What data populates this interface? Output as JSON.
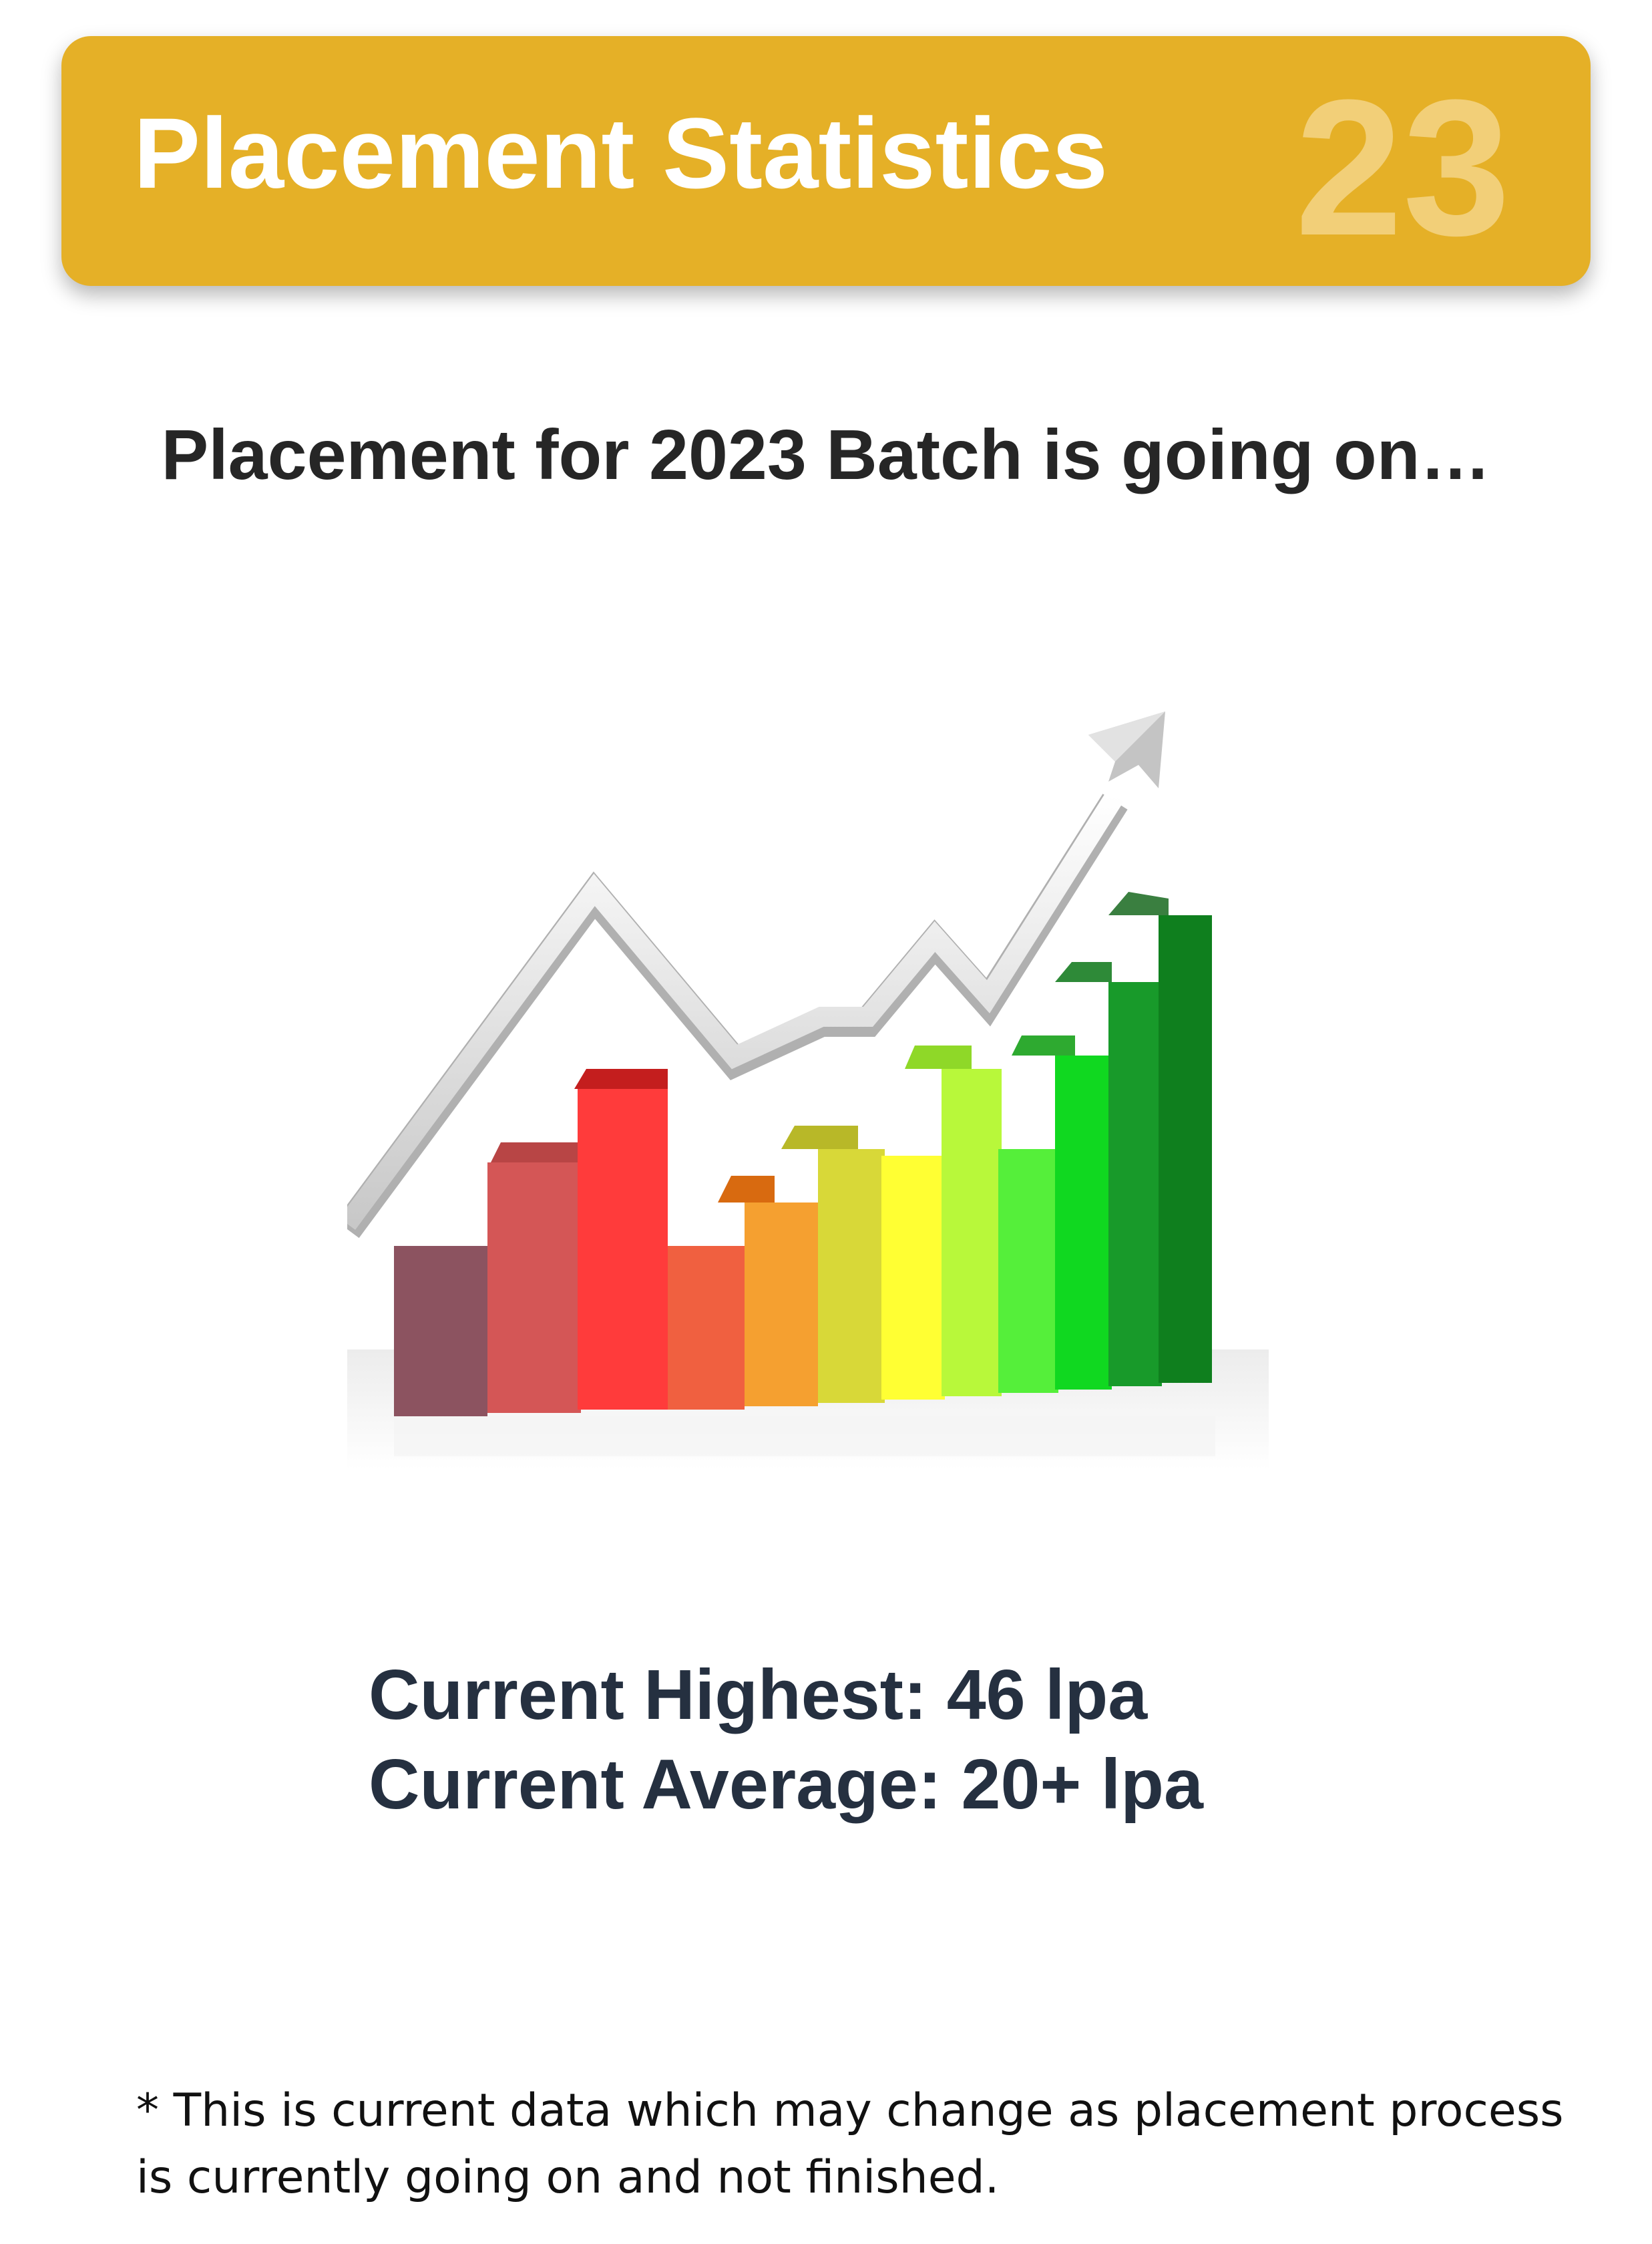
{
  "header": {
    "title": "Placement Statistics",
    "slide_number": "23",
    "color": "#e5b027"
  },
  "headline": "Placement for 2023 Batch is going on…",
  "illustration": {
    "icon": "rising-bar-chart-with-arrow-icon",
    "bar_colors": [
      "#8c5360",
      "#d45656",
      "#ff3b3b",
      "#f06040",
      "#f5a030",
      "#d8d838",
      "#ffff33",
      "#b8f83a",
      "#55ef3a",
      "#10d820",
      "#189a2a",
      "#0f7f1e"
    ]
  },
  "stats": {
    "highest": "Current Highest: 46 lpa",
    "average": "Current Average: 20+ lpa"
  },
  "footnote": {
    "line1": "* This is current data which may change as placement process",
    "line2": "is currently going on and not finished."
  }
}
